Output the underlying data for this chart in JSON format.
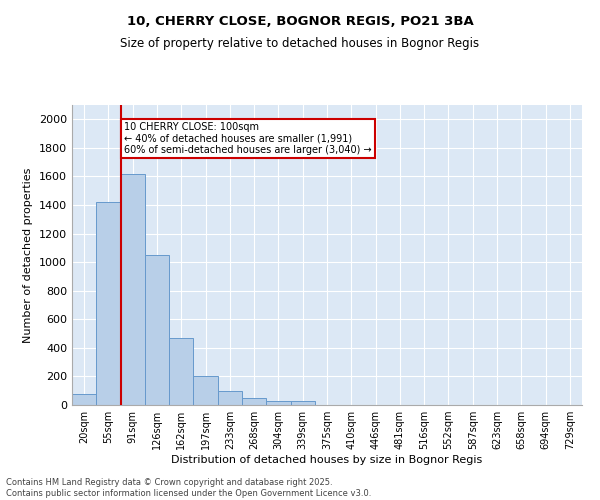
{
  "title_line1": "10, CHERRY CLOSE, BOGNOR REGIS, PO21 3BA",
  "title_line2": "Size of property relative to detached houses in Bognor Regis",
  "xlabel": "Distribution of detached houses by size in Bognor Regis",
  "ylabel": "Number of detached properties",
  "categories": [
    "20sqm",
    "55sqm",
    "91sqm",
    "126sqm",
    "162sqm",
    "197sqm",
    "233sqm",
    "268sqm",
    "304sqm",
    "339sqm",
    "375sqm",
    "410sqm",
    "446sqm",
    "481sqm",
    "516sqm",
    "552sqm",
    "587sqm",
    "623sqm",
    "658sqm",
    "694sqm",
    "729sqm"
  ],
  "values": [
    75,
    1420,
    1620,
    1050,
    470,
    200,
    100,
    50,
    30,
    30,
    0,
    0,
    0,
    0,
    0,
    0,
    0,
    0,
    0,
    0,
    0
  ],
  "bar_color": "#b8cfe8",
  "bar_edge_color": "#6699cc",
  "vline_color": "#cc0000",
  "vline_x_index": 2,
  "annotation_text": "10 CHERRY CLOSE: 100sqm\n← 40% of detached houses are smaller (1,991)\n60% of semi-detached houses are larger (3,040) →",
  "annotation_box_edgecolor": "#cc0000",
  "ylim": [
    0,
    2100
  ],
  "yticks": [
    0,
    200,
    400,
    600,
    800,
    1000,
    1200,
    1400,
    1600,
    1800,
    2000
  ],
  "bg_color": "#dce8f5",
  "footer_line1": "Contains HM Land Registry data © Crown copyright and database right 2025.",
  "footer_line2": "Contains public sector information licensed under the Open Government Licence v3.0."
}
